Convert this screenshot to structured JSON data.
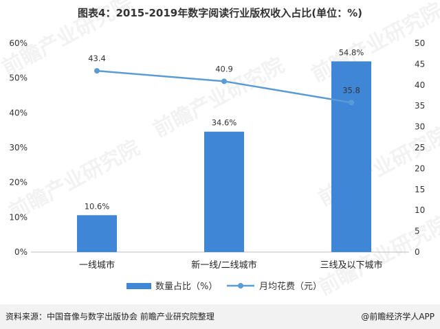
{
  "title": "图表4：2015-2019年数字阅读行业版权收入占比(单位：%)",
  "chart_data": {
    "type": "bar",
    "categories": [
      "一线城市",
      "新一线/二线城市",
      "三线及以下城市"
    ],
    "series": [
      {
        "name": "数量占比（%）",
        "type": "bar",
        "axis": "left",
        "values": [
          10.6,
          34.6,
          54.8
        ],
        "labels": [
          "10.6%",
          "34.6%",
          "54.8%"
        ],
        "color": "#3f86d6"
      },
      {
        "name": "月均花费（元）",
        "type": "line",
        "axis": "right",
        "values": [
          43.4,
          40.9,
          35.8
        ],
        "labels": [
          "43.4",
          "40.9",
          "35.8"
        ],
        "color": "#5b9bd5"
      }
    ],
    "y_left": {
      "min": 0,
      "max": 60,
      "ticks": [
        "0%",
        "10%",
        "20%",
        "30%",
        "40%",
        "50%",
        "60%"
      ]
    },
    "y_right": {
      "min": 0,
      "max": 50,
      "ticks": [
        "0",
        "5",
        "10",
        "15",
        "20",
        "25",
        "30",
        "35",
        "40",
        "45",
        "50"
      ]
    },
    "legend_position": "bottom",
    "grid": false
  },
  "footer": {
    "source": "资料来源：中国音像与数字出版协会 前瞻产业研究院整理",
    "brand": "@前瞻经济学人APP"
  },
  "watermark": "前瞻产业研究院"
}
